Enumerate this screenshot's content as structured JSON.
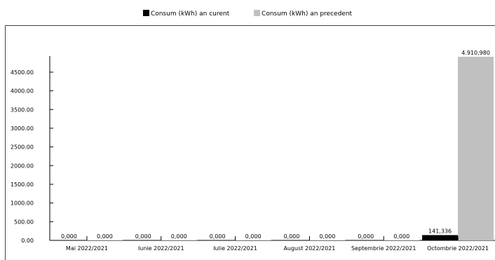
{
  "chart_data": {
    "type": "bar",
    "categories": [
      "Mai 2022/2021",
      "Iunie 2022/2021",
      "Iulie 2022/2021",
      "August 2022/2021",
      "Septembrie 2022/2021",
      "Octombrie 2022/2021"
    ],
    "series": [
      {
        "name": "Consum (kWh) an curent",
        "color": "#000000",
        "values": [
          0,
          0,
          0,
          0,
          0,
          141.336
        ],
        "labels": [
          "0,000",
          "0,000",
          "0,000",
          "0,000",
          "0,000",
          "141,336"
        ]
      },
      {
        "name": "Consum (kWh) an precedent",
        "color": "#c0c0c0",
        "values": [
          0,
          0,
          0,
          0,
          0,
          4910.98
        ],
        "labels": [
          "0,000",
          "0,000",
          "0,000",
          "0,000",
          "0,000",
          "4.910,980"
        ]
      }
    ],
    "yticks": [
      "0.00",
      "500.00",
      "1000.00",
      "1500.00",
      "2000.00",
      "2500.00",
      "3000.00",
      "3500.00",
      "4000.00",
      "4500.00"
    ],
    "ylim": [
      0,
      4910.98
    ],
    "legend_position": "top",
    "grid": false
  }
}
